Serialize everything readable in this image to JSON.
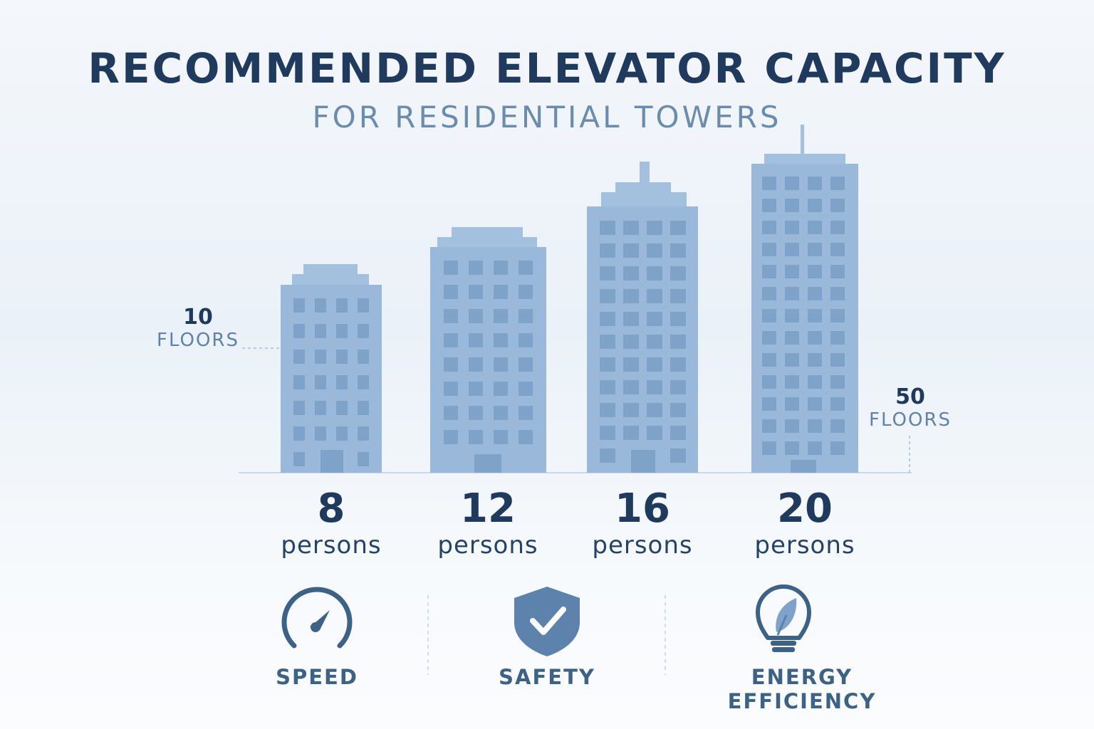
{
  "header": {
    "title": "RECOMMENDED ELEVATOR CAPACITY",
    "subtitle": "FOR RESIDENTIAL TOWERS"
  },
  "floor_markers": [
    {
      "number": "10",
      "label": "FLOORS"
    },
    {
      "number": "50",
      "label": "FLOORS"
    }
  ],
  "buildings": [
    {
      "capacity": "8",
      "unit": "persons"
    },
    {
      "capacity": "12",
      "unit": "persons"
    },
    {
      "capacity": "16",
      "unit": "persons"
    },
    {
      "capacity": "20",
      "unit": "persons"
    }
  ],
  "features": [
    {
      "label": "SPEED",
      "icon": "speedometer-icon"
    },
    {
      "label": "SAFETY",
      "icon": "shield-check-icon"
    },
    {
      "label": "ENERGY EFFICIENCY",
      "icon": "lightbulb-leaf-icon"
    }
  ],
  "colors": {
    "title": "#1f3a5c",
    "accent": "#5f83a8",
    "building": "#9ab8d9",
    "window": "#7fa2c8"
  }
}
